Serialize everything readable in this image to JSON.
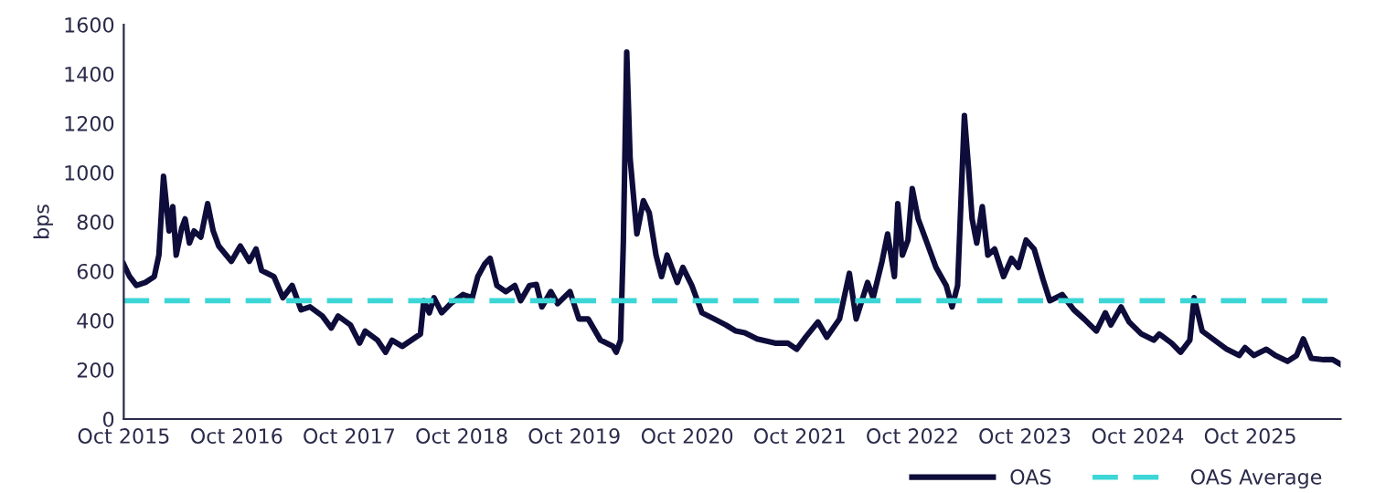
{
  "chart_data": {
    "type": "line",
    "ylabel": "bps",
    "ylim": [
      0,
      1600
    ],
    "yticks": [
      0,
      200,
      400,
      600,
      800,
      1000,
      1200,
      1400,
      1600
    ],
    "xlim": [
      "2015-10-01",
      "2026-07-21"
    ],
    "xticks": [
      {
        "value": "2015-10-01",
        "label": "Oct 2015"
      },
      {
        "value": "2016-10-01",
        "label": "Oct 2016"
      },
      {
        "value": "2017-10-01",
        "label": "Oct 2017"
      },
      {
        "value": "2018-10-01",
        "label": "Oct 2018"
      },
      {
        "value": "2019-10-01",
        "label": "Oct 2019"
      },
      {
        "value": "2020-10-01",
        "label": "Oct 2020"
      },
      {
        "value": "2021-10-01",
        "label": "Oct 2021"
      },
      {
        "value": "2022-10-01",
        "label": "Oct 2022"
      },
      {
        "value": "2023-10-01",
        "label": "Oct 2023"
      },
      {
        "value": "2024-10-01",
        "label": "Oct 2024"
      },
      {
        "value": "2025-10-01",
        "label": "Oct 2025"
      }
    ],
    "grid": false,
    "legend": "bottom right",
    "marker": "none",
    "line_style": "solid",
    "series": [
      {
        "name": "OAS",
        "color": "#0d0c3a",
        "x": [
          "2015-10-01",
          "2015-10-20",
          "2015-11-11",
          "2015-12-10",
          "2016-01-08",
          "2016-01-23",
          "2016-02-07",
          "2016-02-25",
          "2016-03-08",
          "2016-03-19",
          "2016-04-06",
          "2016-04-17",
          "2016-05-01",
          "2016-05-16",
          "2016-06-07",
          "2016-06-29",
          "2016-07-17",
          "2016-08-04",
          "2016-09-14",
          "2016-10-13",
          "2016-11-11",
          "2016-12-03",
          "2016-12-21",
          "2017-01-30",
          "2017-02-28",
          "2017-03-30",
          "2017-04-28",
          "2017-05-27",
          "2017-07-06",
          "2017-08-04",
          "2017-08-26",
          "2017-10-05",
          "2017-11-04",
          "2017-11-22",
          "2018-01-01",
          "2018-01-27",
          "2018-02-17",
          "2018-03-22",
          "2018-05-20",
          "2018-05-31",
          "2018-06-18",
          "2018-07-03",
          "2018-07-28",
          "2018-08-26",
          "2018-10-05",
          "2018-11-04",
          "2018-11-22",
          "2018-12-14",
          "2019-01-01",
          "2019-01-23",
          "2019-02-21",
          "2019-03-22",
          "2019-04-10",
          "2019-05-09",
          "2019-05-31",
          "2019-06-18",
          "2019-07-17",
          "2019-08-08",
          "2019-09-17",
          "2019-10-16",
          "2019-11-15",
          "2019-12-25",
          "2020-02-03",
          "2020-02-14",
          "2020-02-28",
          "2020-03-08",
          "2020-03-19",
          "2020-03-30",
          "2020-04-13",
          "2020-04-21",
          "2020-05-12",
          "2020-05-31",
          "2020-06-22",
          "2020-07-10",
          "2020-07-28",
          "2020-08-30",
          "2020-09-17",
          "2020-10-16",
          "2020-11-18",
          "2020-12-28",
          "2021-02-03",
          "2021-03-08",
          "2021-04-06",
          "2021-05-16",
          "2021-07-13",
          "2021-08-23",
          "2021-09-21",
          "2021-10-20",
          "2021-11-29",
          "2021-12-28",
          "2022-02-07",
          "2022-03-11",
          "2022-04-02",
          "2022-05-09",
          "2022-05-27",
          "2022-06-25",
          "2022-07-13",
          "2022-08-04",
          "2022-08-15",
          "2022-08-30",
          "2022-09-17",
          "2022-10-01",
          "2022-10-20",
          "2022-11-18",
          "2022-12-17",
          "2023-01-19",
          "2023-02-07",
          "2023-02-25",
          "2023-03-19",
          "2023-04-02",
          "2023-04-13",
          "2023-04-28",
          "2023-05-16",
          "2023-06-03",
          "2023-06-25",
          "2023-07-24",
          "2023-08-19",
          "2023-09-10",
          "2023-10-05",
          "2023-10-31",
          "2023-11-29",
          "2023-12-21",
          "2024-01-30",
          "2024-03-08",
          "2024-04-10",
          "2024-05-20",
          "2024-06-18",
          "2024-07-06",
          "2024-08-08",
          "2024-09-03",
          "2024-10-13",
          "2024-11-22",
          "2024-12-10",
          "2025-01-19",
          "2025-02-17",
          "2025-03-19",
          "2025-04-02",
          "2025-04-28",
          "2025-06-07",
          "2025-07-17",
          "2025-08-26",
          "2025-09-14",
          "2025-10-13",
          "2025-11-22",
          "2025-12-21",
          "2026-01-30",
          "2026-02-28",
          "2026-03-22",
          "2026-04-17",
          "2026-05-27",
          "2026-06-25",
          "2026-07-21"
        ],
        "values": [
          628,
          578,
          542,
          554,
          578,
          665,
          985,
          763,
          862,
          665,
          775,
          812,
          714,
          763,
          738,
          874,
          763,
          702,
          640,
          702,
          640,
          690,
          603,
          578,
          492,
          542,
          443,
          455,
          418,
          369,
          418,
          382,
          308,
          357,
          320,
          271,
          320,
          295,
          345,
          480,
          431,
          492,
          431,
          468,
          505,
          492,
          578,
          628,
          652,
          542,
          517,
          542,
          480,
          542,
          546,
          455,
          517,
          468,
          517,
          406,
          406,
          320,
          295,
          271,
          320,
          714,
          1489,
          1058,
          862,
          751,
          886,
          837,
          665,
          578,
          665,
          554,
          615,
          542,
          431,
          406,
          382,
          357,
          350,
          325,
          308,
          308,
          283,
          332,
          394,
          332,
          406,
          591,
          406,
          554,
          492,
          640,
          751,
          578,
          874,
          665,
          726,
          935,
          812,
          714,
          615,
          542,
          455,
          542,
          1231,
          1009,
          812,
          714,
          862,
          665,
          690,
          578,
          652,
          615,
          726,
          690,
          566,
          480,
          505,
          443,
          406,
          357,
          431,
          382,
          455,
          394,
          345,
          320,
          345,
          308,
          271,
          320,
          492,
          357,
          320,
          283,
          258,
          290,
          258,
          283,
          258,
          234,
          258,
          325,
          246,
          241,
          241,
          222
        ]
      }
    ],
    "ref_lines": [
      {
        "axis": "y",
        "value": 480,
        "label": "OAS Average",
        "color": "#3dd6d6",
        "line_style": "dashed"
      }
    ]
  }
}
